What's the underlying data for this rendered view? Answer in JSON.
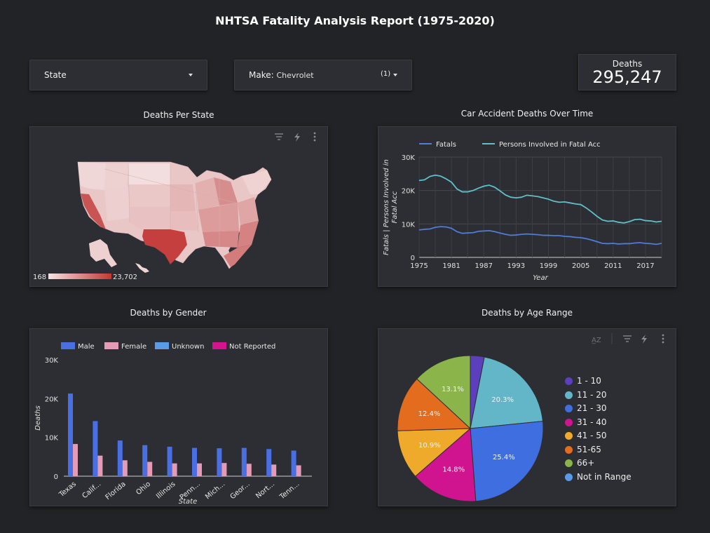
{
  "report": {
    "title": "NHTSA Fatality Analysis Report (1975-2020)"
  },
  "filters": {
    "state": {
      "label": "State"
    },
    "make": {
      "label": "Make:",
      "value": "Chevrolet",
      "count": "(1)"
    }
  },
  "kpi": {
    "label": "Deaths",
    "value": "295,247"
  },
  "map_card": {
    "title": "Deaths Per State",
    "scale_min": "168",
    "scale_max": "23,702",
    "icons": [
      "filter-icon",
      "lightning-icon",
      "more-vert-icon"
    ]
  },
  "line_card": {
    "title": "Car Accident Deaths Over Time",
    "chart_data": {
      "type": "line",
      "xlabel": "Year",
      "ylabel": "Fatals | Persons Involved in Fatal Acc",
      "ylim": [
        0,
        30000
      ],
      "y_ticks": [
        "0",
        "10K",
        "20K",
        "30K"
      ],
      "x_ticks": [
        "1975",
        "1981",
        "1987",
        "1993",
        "1999",
        "2005",
        "2011",
        "2017"
      ],
      "x": [
        1975,
        1976,
        1977,
        1978,
        1979,
        1980,
        1981,
        1982,
        1983,
        1984,
        1985,
        1986,
        1987,
        1988,
        1989,
        1990,
        1991,
        1992,
        1993,
        1994,
        1995,
        1996,
        1997,
        1998,
        1999,
        2000,
        2001,
        2002,
        2003,
        2004,
        2005,
        2006,
        2007,
        2008,
        2009,
        2010,
        2011,
        2012,
        2013,
        2014,
        2015,
        2016,
        2017,
        2018,
        2019,
        2020
      ],
      "series": [
        {
          "name": "Fatals",
          "color": "#4f7bd9",
          "values": [
            8200,
            8400,
            8500,
            9000,
            9200,
            9100,
            8700,
            7700,
            7200,
            7300,
            7400,
            7800,
            7900,
            8000,
            7700,
            7300,
            6900,
            6600,
            6700,
            6900,
            7000,
            6900,
            6800,
            6600,
            6600,
            6500,
            6500,
            6300,
            6200,
            6000,
            5900,
            5600,
            5200,
            4700,
            4200,
            4100,
            4200,
            4000,
            4100,
            4100,
            4300,
            4400,
            4200,
            4100,
            3900,
            4200
          ]
        },
        {
          "name": "Persons Involved in Fatal Acc",
          "color": "#5fc0c9",
          "values": [
            23000,
            23200,
            24200,
            24600,
            24300,
            23500,
            22500,
            20500,
            19600,
            19600,
            20000,
            20700,
            21300,
            21600,
            21000,
            19900,
            18700,
            18000,
            17800,
            18000,
            18600,
            18400,
            18200,
            17800,
            17400,
            16800,
            16500,
            16600,
            16300,
            16000,
            15800,
            14800,
            13600,
            12300,
            11200,
            10800,
            10900,
            10500,
            10300,
            10700,
            11300,
            11400,
            11000,
            10900,
            10600,
            10800
          ]
        }
      ]
    }
  },
  "gender_card": {
    "title": "Deaths by Gender",
    "chart_data": {
      "type": "bar",
      "xlabel": "State",
      "ylabel": "Deaths",
      "ylim": [
        0,
        30000
      ],
      "y_ticks": [
        "0",
        "10K",
        "20K",
        "30K"
      ],
      "categories": [
        "Texas",
        "Calif...",
        "Florida",
        "Ohio",
        "Illinois",
        "Penn...",
        "Mich...",
        "Geor...",
        "Nort...",
        "Tenn..."
      ],
      "series": [
        {
          "name": "Male",
          "color": "#4a6fe3",
          "values": [
            21300,
            14200,
            9200,
            8000,
            7600,
            7300,
            7200,
            7300,
            7000,
            6600
          ]
        },
        {
          "name": "Female",
          "color": "#e39bb6",
          "values": [
            8300,
            5300,
            4100,
            3700,
            3300,
            3300,
            3400,
            3200,
            3000,
            2800
          ]
        },
        {
          "name": "Unknown",
          "color": "#5a9be8",
          "values": [
            0,
            0,
            0,
            0,
            0,
            0,
            0,
            0,
            0,
            0
          ]
        },
        {
          "name": "Not Reported",
          "color": "#d4148f",
          "values": [
            0,
            0,
            0,
            0,
            0,
            0,
            0,
            0,
            0,
            0
          ]
        }
      ]
    }
  },
  "age_card": {
    "title": "Deaths by Age Range",
    "icons": [
      "sort-az-icon",
      "filter-icon",
      "lightning-icon",
      "more-vert-icon"
    ],
    "chart_data": {
      "type": "pie",
      "slices": [
        {
          "label": "1 - 10",
          "value": 3.1,
          "color": "#5b3fbc",
          "show": ""
        },
        {
          "label": "11 - 20",
          "value": 20.3,
          "color": "#62b6c8",
          "show": "20.3%"
        },
        {
          "label": "21 - 30",
          "value": 25.4,
          "color": "#3f6ee0",
          "show": "25.4%"
        },
        {
          "label": "31 - 40",
          "value": 14.8,
          "color": "#d0138e",
          "show": "14.8%"
        },
        {
          "label": "41 - 50",
          "value": 10.9,
          "color": "#f0aa2b",
          "show": "10.9%"
        },
        {
          "label": "51-65",
          "value": 12.4,
          "color": "#e36c1e",
          "show": "12.4%"
        },
        {
          "label": "66+",
          "value": 13.1,
          "color": "#8bb54a",
          "show": "13.1%"
        },
        {
          "label": "Not in Range",
          "value": 0,
          "color": "#5a9be8",
          "show": ""
        }
      ]
    }
  }
}
